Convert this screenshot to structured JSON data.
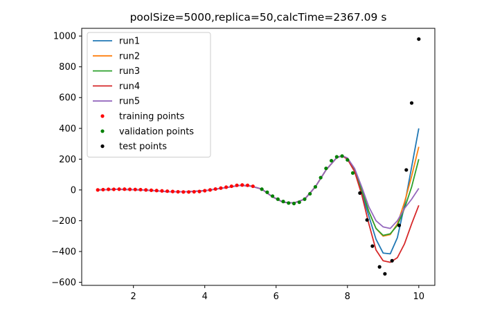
{
  "chart_data": {
    "type": "line",
    "title": "poolSize=5000,replica=50,calcTime=2367.09 s",
    "xlabel": "",
    "ylabel": "",
    "xlim": [
      0.55,
      10.45
    ],
    "ylim": [
      -620,
      1050
    ],
    "xticks": [
      2,
      4,
      6,
      8,
      10
    ],
    "yticks": [
      -600,
      -400,
      -200,
      0,
      200,
      400,
      600,
      800,
      1000
    ],
    "grid": false,
    "legend_position": "top-left",
    "series": [
      {
        "name": "run1",
        "color": "#1f77b4",
        "x": [
          1.0,
          1.5,
          2.0,
          2.5,
          3.0,
          3.5,
          4.0,
          4.5,
          5.0,
          5.3,
          5.6,
          5.9,
          6.2,
          6.5,
          6.8,
          7.1,
          7.4,
          7.7,
          7.85,
          8.0,
          8.2,
          8.4,
          8.6,
          8.8,
          9.0,
          9.2,
          9.4,
          9.6,
          9.8,
          10.0
        ],
        "y": [
          0,
          4,
          2,
          -3,
          -12,
          -12,
          -5,
          12,
          30,
          25,
          5,
          -45,
          -80,
          -85,
          -60,
          20,
          130,
          210,
          222,
          200,
          120,
          -20,
          -170,
          -320,
          -410,
          -415,
          -310,
          -100,
          150,
          400
        ]
      },
      {
        "name": "run2",
        "color": "#ff7f0e",
        "x": [
          1.0,
          1.5,
          2.0,
          2.5,
          3.0,
          3.5,
          4.0,
          4.5,
          5.0,
          5.3,
          5.6,
          5.9,
          6.2,
          6.5,
          6.8,
          7.1,
          7.4,
          7.7,
          7.85,
          8.0,
          8.2,
          8.4,
          8.6,
          8.8,
          9.0,
          9.2,
          9.4,
          9.6,
          9.8,
          10.0
        ],
        "y": [
          0,
          4,
          2,
          -3,
          -12,
          -12,
          -5,
          12,
          30,
          25,
          5,
          -45,
          -80,
          -85,
          -60,
          20,
          130,
          210,
          222,
          205,
          130,
          0,
          -140,
          -250,
          -300,
          -290,
          -220,
          -80,
          90,
          280
        ]
      },
      {
        "name": "run3",
        "color": "#2ca02c",
        "x": [
          1.0,
          1.5,
          2.0,
          2.5,
          3.0,
          3.5,
          4.0,
          4.5,
          5.0,
          5.3,
          5.6,
          5.9,
          6.2,
          6.5,
          6.8,
          7.1,
          7.4,
          7.7,
          7.85,
          8.0,
          8.2,
          8.4,
          8.6,
          8.8,
          9.0,
          9.2,
          9.4,
          9.6,
          9.8,
          10.0
        ],
        "y": [
          0,
          4,
          2,
          -3,
          -12,
          -12,
          -5,
          12,
          30,
          25,
          5,
          -45,
          -80,
          -85,
          -60,
          20,
          130,
          210,
          222,
          205,
          130,
          0,
          -140,
          -250,
          -295,
          -285,
          -230,
          -120,
          20,
          200
        ]
      },
      {
        "name": "run4",
        "color": "#d62728",
        "x": [
          1.0,
          1.5,
          2.0,
          2.5,
          3.0,
          3.5,
          4.0,
          4.5,
          5.0,
          5.3,
          5.6,
          5.9,
          6.2,
          6.5,
          6.8,
          7.1,
          7.4,
          7.7,
          7.85,
          8.0,
          8.2,
          8.4,
          8.6,
          8.8,
          9.0,
          9.2,
          9.4,
          9.6,
          9.8,
          10.0
        ],
        "y": [
          0,
          4,
          2,
          -3,
          -12,
          -12,
          -5,
          12,
          30,
          25,
          5,
          -45,
          -80,
          -85,
          -60,
          20,
          130,
          210,
          222,
          200,
          120,
          -30,
          -220,
          -390,
          -460,
          -470,
          -440,
          -350,
          -220,
          -100
        ]
      },
      {
        "name": "run5",
        "color": "#9467bd",
        "x": [
          1.0,
          1.5,
          2.0,
          2.5,
          3.0,
          3.5,
          4.0,
          4.5,
          5.0,
          5.3,
          5.6,
          5.9,
          6.2,
          6.5,
          6.8,
          7.1,
          7.4,
          7.7,
          7.85,
          8.0,
          8.2,
          8.4,
          8.6,
          8.8,
          9.0,
          9.2,
          9.4,
          9.6,
          9.8,
          10.0
        ],
        "y": [
          0,
          4,
          2,
          -3,
          -12,
          -12,
          -5,
          12,
          30,
          25,
          5,
          -45,
          -80,
          -85,
          -60,
          20,
          130,
          210,
          222,
          208,
          140,
          20,
          -110,
          -200,
          -240,
          -250,
          -200,
          -120,
          -60,
          10
        ]
      }
    ],
    "points": [
      {
        "name": "training points",
        "color": "#ff0000",
        "x": [
          1.0,
          1.15,
          1.3,
          1.45,
          1.6,
          1.75,
          1.9,
          2.05,
          2.2,
          2.35,
          2.5,
          2.65,
          2.8,
          2.95,
          3.1,
          3.25,
          3.4,
          3.55,
          3.7,
          3.85,
          4.0,
          4.15,
          4.3,
          4.45,
          4.6,
          4.75,
          4.9,
          5.05,
          5.2,
          5.35
        ],
        "y": [
          0,
          2,
          4,
          4,
          5,
          5,
          4,
          3,
          2,
          0,
          -2,
          -4,
          -6,
          -8,
          -10,
          -12,
          -13,
          -13,
          -12,
          -10,
          -5,
          0,
          6,
          12,
          18,
          24,
          30,
          32,
          30,
          24
        ]
      },
      {
        "name": "validation points",
        "color": "#008000",
        "x": [
          5.6,
          5.75,
          5.9,
          6.05,
          6.2,
          6.35,
          6.5,
          6.65,
          6.8,
          6.95,
          7.1,
          7.25,
          7.4,
          7.55,
          7.7,
          7.85,
          8.0,
          8.15
        ],
        "y": [
          5,
          -15,
          -40,
          -60,
          -75,
          -85,
          -88,
          -80,
          -60,
          -25,
          20,
          80,
          140,
          190,
          215,
          220,
          195,
          110
        ]
      },
      {
        "name": "test points",
        "color": "#000000",
        "x": [
          8.35,
          8.55,
          8.7,
          8.9,
          9.05,
          9.25,
          9.45,
          9.65,
          9.8,
          10.0
        ],
        "y": [
          -20,
          -195,
          -365,
          -500,
          -545,
          -460,
          -230,
          130,
          565,
          980
        ]
      }
    ]
  }
}
